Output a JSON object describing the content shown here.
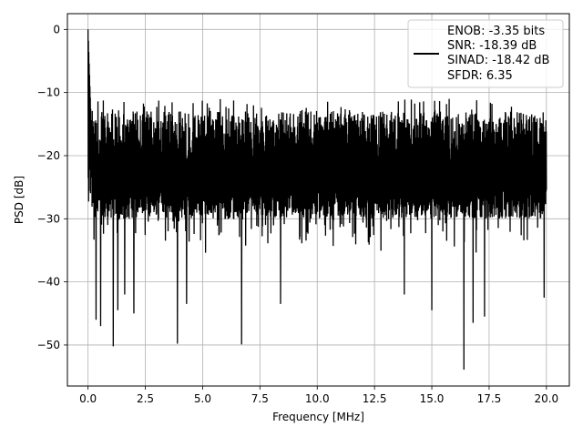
{
  "chart_data": {
    "type": "line",
    "title": "",
    "xlabel": "Frequency [MHz]",
    "ylabel": "PSD [dB]",
    "xlim": [
      -0.9,
      21.0
    ],
    "ylim": [
      -56.5,
      2.5
    ],
    "xticks": [
      0.0,
      2.5,
      5.0,
      7.5,
      10.0,
      12.5,
      15.0,
      17.5,
      20.0
    ],
    "xtick_labels": [
      "0.0",
      "2.5",
      "5.0",
      "7.5",
      "10.0",
      "12.5",
      "15.0",
      "17.5",
      "20.0"
    ],
    "yticks": [
      0,
      -10,
      -20,
      -30,
      -40,
      -50
    ],
    "ytick_labels": [
      "0",
      "−10",
      "−20",
      "−30",
      "−40",
      "−50"
    ],
    "grid": true,
    "legend_position": "top-right",
    "line_color": "#000000",
    "series": [
      {
        "name": "",
        "legend_lines": [
          "ENOB: -3.35 bits",
          "SNR: -18.39 dB",
          "SINAD: -18.42 dB",
          "SFDR: 6.35"
        ],
        "x_range": [
          0.0,
          20.0
        ],
        "peak": {
          "x": 0.0,
          "y": 0.0
        },
        "noise_floor_approx": {
          "upper": -13,
          "lower": -30,
          "center": -22
        },
        "notable_dips": [
          {
            "x": 0.35,
            "y": -46.0
          },
          {
            "x": 0.55,
            "y": -47.0
          },
          {
            "x": 1.1,
            "y": -50.2
          },
          {
            "x": 1.3,
            "y": -44.5
          },
          {
            "x": 1.6,
            "y": -42.0
          },
          {
            "x": 2.0,
            "y": -45.0
          },
          {
            "x": 3.9,
            "y": -49.8
          },
          {
            "x": 4.3,
            "y": -43.5
          },
          {
            "x": 6.7,
            "y": -49.9
          },
          {
            "x": 8.4,
            "y": -43.5
          },
          {
            "x": 13.8,
            "y": -42.0
          },
          {
            "x": 15.0,
            "y": -44.5
          },
          {
            "x": 16.4,
            "y": -53.9
          },
          {
            "x": 16.8,
            "y": -46.5
          },
          {
            "x": 17.3,
            "y": -45.5
          },
          {
            "x": 19.9,
            "y": -42.5
          }
        ]
      }
    ]
  }
}
